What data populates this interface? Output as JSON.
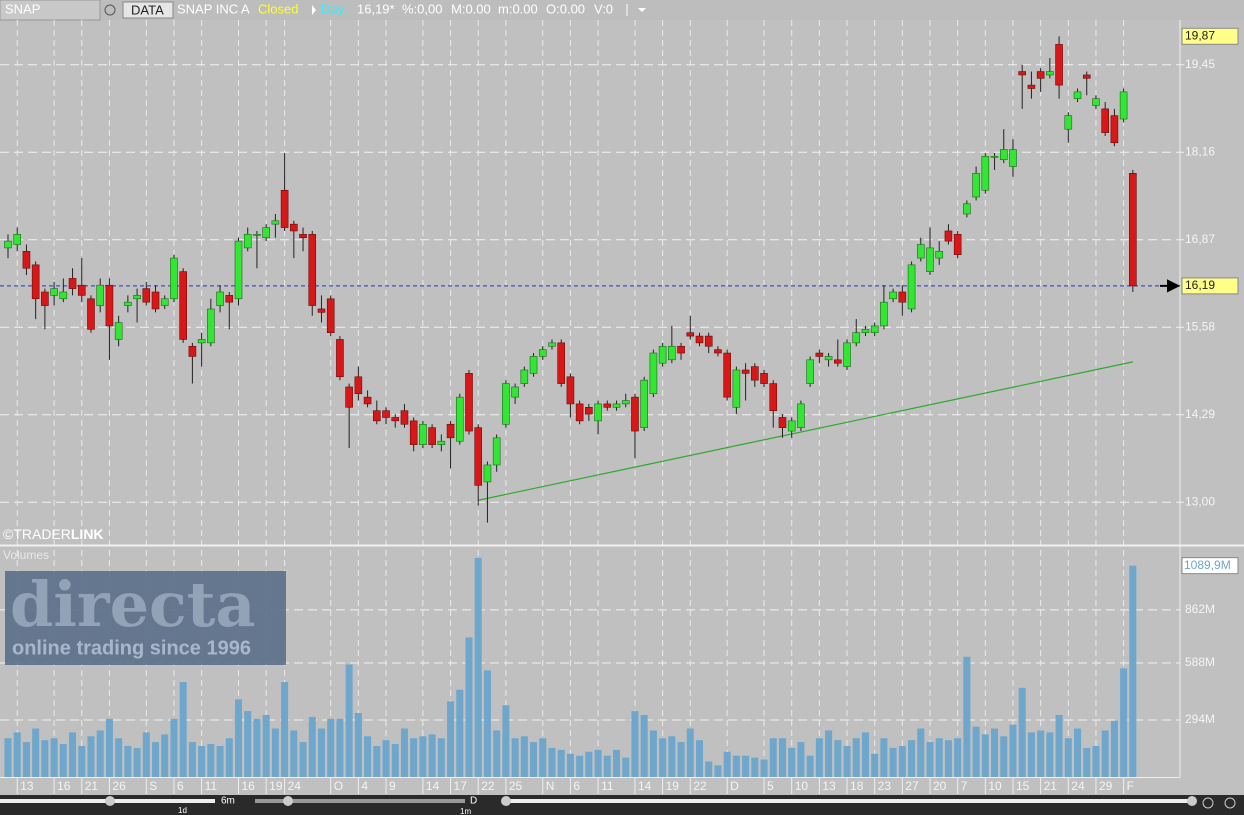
{
  "header": {
    "symbol": "SNAP",
    "source": "DATA",
    "name": "SNAP INC A",
    "status": "Closed",
    "period": "Day:",
    "last": "16,19*",
    "pct": "%:0,00",
    "max": "M:0.00",
    "min": "m:0.00",
    "open": "O:0.00",
    "volume": "V:0"
  },
  "brand": {
    "logo_left": "©TRADER",
    "logo_right": "LINK",
    "watermark": "directa",
    "tagline": "online trading since 1996"
  },
  "footer": {
    "range": "6m",
    "interval": "1d",
    "mode": "D",
    "zoom": "1m"
  },
  "chart_data": [
    {
      "type": "candlestick",
      "up_color": "#33e633",
      "down_color": "#d81818",
      "grid": true,
      "categories": [
        null,
        "13",
        null,
        null,
        null,
        "16",
        null,
        null,
        "21",
        null,
        null,
        "26",
        null,
        null,
        null,
        "S",
        null,
        null,
        "6",
        null,
        null,
        "11",
        null,
        null,
        null,
        "16",
        null,
        null,
        "19",
        null,
        "24",
        null,
        null,
        null,
        null,
        "O",
        null,
        null,
        "4",
        null,
        null,
        "9",
        null,
        null,
        null,
        "14",
        null,
        null,
        "17",
        null,
        null,
        "22",
        null,
        null,
        "25",
        null,
        null,
        null,
        "N",
        null,
        null,
        "6",
        null,
        null,
        "11",
        null,
        null,
        null,
        "14",
        null,
        null,
        "19",
        null,
        null,
        "22",
        null,
        null,
        null,
        "D",
        null,
        null,
        null,
        "5",
        null,
        null,
        "10",
        null,
        null,
        "13",
        null,
        null,
        "18",
        null,
        null,
        "23",
        null,
        null,
        "27",
        null,
        null,
        "20",
        null,
        null,
        "7",
        null,
        null,
        "10",
        null,
        null,
        "15",
        null,
        null,
        "21",
        null,
        null,
        "24",
        null,
        null,
        "29",
        null,
        null,
        "F",
        null
      ],
      "open": [
        16.75,
        16.8,
        16.7,
        16.5,
        16.1,
        16.05,
        16.0,
        16.3,
        16.2,
        16.0,
        15.9,
        16.2,
        15.4,
        15.9,
        16.0,
        16.15,
        16.1,
        15.9,
        16.0,
        16.4,
        15.3,
        15.35,
        15.35,
        15.9,
        16.05,
        16.0,
        16.75,
        16.95,
        16.9,
        17.1,
        17.6,
        17.1,
        16.95,
        16.95,
        15.85,
        16.0,
        15.4,
        14.7,
        14.85,
        14.55,
        14.35,
        14.35,
        14.25,
        14.35,
        14.2,
        13.85,
        14.1,
        13.85,
        14.15,
        13.9,
        14.9,
        14.1,
        13.3,
        13.55,
        14.15,
        14.55,
        14.75,
        14.9,
        15.15,
        15.3,
        15.35,
        14.85,
        14.45,
        14.4,
        14.2,
        14.45,
        14.4,
        14.45,
        14.55,
        14.1,
        14.6,
        15.05,
        15.1,
        15.3,
        15.5,
        15.45,
        15.45,
        15.25,
        15.2,
        14.4,
        14.95,
        15.0,
        14.9,
        14.75,
        14.25,
        14.05,
        14.1,
        14.75,
        15.2,
        15.1,
        15.1,
        15.0,
        15.35,
        15.5,
        15.5,
        15.6,
        16.0,
        16.1,
        15.85,
        16.6,
        16.4,
        16.6,
        17.0,
        16.95,
        17.25,
        17.5,
        17.6,
        18.1,
        18.05,
        17.95,
        19.35,
        19.15,
        19.35,
        19.3,
        19.75,
        18.5,
        18.95,
        19.3,
        18.85,
        18.8,
        18.7,
        18.65,
        17.85
      ],
      "high": [
        16.95,
        17.05,
        16.8,
        16.55,
        16.15,
        16.25,
        16.3,
        16.45,
        16.6,
        16.05,
        16.3,
        16.3,
        15.75,
        16.05,
        16.15,
        16.25,
        16.2,
        16.05,
        16.65,
        16.45,
        15.35,
        15.5,
        16.0,
        16.2,
        16.1,
        16.9,
        17.05,
        17.0,
        17.1,
        17.25,
        18.15,
        17.15,
        17.05,
        17.0,
        16.05,
        16.05,
        15.45,
        14.75,
        15.0,
        14.65,
        14.5,
        14.4,
        14.3,
        14.45,
        14.25,
        14.2,
        14.15,
        14.0,
        14.2,
        14.6,
        14.95,
        14.15,
        13.6,
        14.0,
        14.8,
        14.75,
        15.0,
        15.2,
        15.3,
        15.4,
        15.4,
        14.9,
        14.5,
        14.45,
        14.5,
        14.5,
        14.5,
        14.6,
        14.6,
        14.85,
        15.25,
        15.35,
        15.6,
        15.35,
        15.75,
        15.5,
        15.5,
        15.3,
        15.25,
        15.0,
        15.05,
        15.05,
        14.95,
        14.8,
        14.3,
        14.25,
        14.5,
        15.15,
        15.25,
        15.2,
        15.4,
        15.4,
        15.7,
        15.6,
        15.65,
        16.2,
        16.15,
        16.2,
        16.55,
        16.9,
        17.05,
        16.85,
        17.1,
        17.0,
        17.45,
        17.95,
        18.15,
        18.15,
        18.5,
        18.35,
        19.45,
        19.35,
        19.4,
        19.55,
        19.87,
        18.75,
        19.1,
        19.35,
        19.0,
        18.9,
        18.8,
        19.1,
        17.9
      ],
      "low": [
        16.6,
        16.7,
        16.35,
        15.7,
        15.55,
        15.9,
        15.95,
        16.05,
        15.95,
        15.5,
        15.8,
        15.1,
        15.3,
        15.8,
        15.65,
        15.9,
        15.8,
        15.85,
        15.95,
        15.35,
        14.75,
        15.0,
        15.3,
        15.8,
        15.55,
        15.9,
        16.7,
        16.45,
        16.85,
        16.9,
        17.0,
        16.6,
        16.7,
        15.75,
        15.65,
        15.45,
        14.8,
        13.8,
        14.5,
        14.4,
        14.15,
        14.15,
        14.1,
        14.1,
        13.75,
        13.8,
        13.8,
        13.75,
        13.5,
        13.85,
        14.0,
        12.95,
        12.7,
        13.45,
        14.1,
        14.45,
        14.7,
        14.85,
        15.1,
        15.25,
        14.7,
        14.25,
        14.15,
        14.2,
        14.0,
        14.35,
        14.35,
        14.4,
        13.65,
        14.05,
        14.55,
        15.0,
        15.05,
        15.1,
        15.4,
        15.3,
        15.2,
        15.15,
        14.5,
        14.3,
        14.5,
        14.7,
        14.7,
        14.1,
        13.95,
        13.95,
        14.05,
        14.7,
        15.05,
        15.0,
        15.0,
        14.95,
        15.3,
        15.45,
        15.45,
        15.55,
        15.95,
        15.75,
        15.8,
        16.55,
        16.35,
        16.5,
        16.8,
        16.6,
        17.2,
        17.45,
        17.55,
        17.9,
        18.0,
        17.8,
        18.8,
        18.95,
        19.05,
        19.25,
        18.95,
        18.3,
        18.9,
        19.0,
        18.8,
        18.4,
        18.25,
        18.6,
        16.1
      ],
      "close": [
        16.85,
        16.95,
        16.45,
        16.0,
        15.9,
        16.15,
        16.1,
        16.15,
        16.05,
        15.55,
        16.2,
        15.6,
        15.65,
        15.95,
        16.05,
        15.95,
        15.85,
        16.0,
        16.6,
        15.4,
        15.15,
        15.4,
        15.85,
        16.1,
        15.95,
        16.85,
        16.95,
        16.95,
        17.05,
        17.15,
        17.05,
        17.0,
        16.9,
        15.9,
        15.8,
        15.5,
        14.85,
        14.4,
        14.6,
        14.45,
        14.2,
        14.25,
        14.2,
        14.15,
        13.85,
        14.15,
        13.85,
        13.9,
        13.95,
        14.55,
        14.05,
        13.25,
        13.55,
        13.95,
        14.75,
        14.7,
        14.95,
        15.15,
        15.25,
        15.35,
        14.75,
        14.45,
        14.2,
        14.3,
        14.45,
        14.4,
        14.45,
        14.5,
        14.05,
        14.8,
        15.2,
        15.3,
        15.3,
        15.2,
        15.45,
        15.35,
        15.3,
        15.2,
        14.55,
        14.95,
        14.9,
        14.8,
        14.75,
        14.35,
        14.1,
        14.2,
        14.45,
        15.1,
        15.15,
        15.15,
        15.05,
        15.35,
        15.5,
        15.55,
        15.6,
        15.95,
        16.1,
        15.95,
        16.5,
        16.8,
        16.75,
        16.7,
        16.85,
        16.65,
        17.4,
        17.85,
        18.1,
        18.1,
        18.2,
        18.2,
        19.3,
        19.1,
        19.25,
        19.35,
        19.15,
        18.7,
        19.05,
        19.25,
        18.95,
        18.45,
        18.3,
        19.05,
        16.19
      ],
      "ylim": [
        12.37,
        20.11
      ],
      "yticks": [
        {
          "value": 19.45,
          "label": "19,45"
        },
        {
          "value": 18.16,
          "label": "18,16"
        },
        {
          "value": 16.87,
          "label": "16,87"
        },
        {
          "value": 15.58,
          "label": "15,58"
        },
        {
          "value": 14.29,
          "label": "14,29"
        },
        {
          "value": 13.0,
          "label": "13,00"
        }
      ],
      "current": {
        "value": 16.19,
        "label": "16,19"
      },
      "range_high": {
        "value": 19.87,
        "label": "19,87"
      },
      "trendline": {
        "x": [
          51,
          122
        ],
        "values": [
          13.03,
          15.07
        ],
        "color": "#2ea82e"
      }
    },
    {
      "type": "bar",
      "title": "Volumes",
      "color": "#6ea6cc",
      "values": [
        200,
        230,
        180,
        250,
        190,
        200,
        170,
        230,
        160,
        210,
        240,
        300,
        200,
        160,
        150,
        230,
        180,
        220,
        300,
        490,
        180,
        160,
        170,
        160,
        200,
        400,
        340,
        300,
        320,
        250,
        490,
        240,
        180,
        310,
        250,
        300,
        300,
        580,
        330,
        210,
        160,
        190,
        170,
        250,
        200,
        210,
        220,
        200,
        390,
        450,
        720,
        1130,
        550,
        240,
        370,
        200,
        210,
        180,
        200,
        150,
        140,
        120,
        110,
        130,
        140,
        110,
        140,
        100,
        340,
        320,
        240,
        200,
        210,
        180,
        250,
        190,
        80,
        60,
        130,
        110,
        110,
        100,
        90,
        200,
        200,
        150,
        180,
        110,
        200,
        240,
        190,
        160,
        200,
        230,
        120,
        200,
        150,
        160,
        190,
        250,
        180,
        200,
        190,
        200,
        620,
        260,
        220,
        250,
        210,
        270,
        460,
        230,
        240,
        230,
        320,
        200,
        250,
        150,
        160,
        240,
        290,
        560,
        1089.9
      ],
      "ylim": [
        0,
        1181
      ],
      "yticks": [
        {
          "value": 294,
          "label": "294M"
        },
        {
          "value": 588,
          "label": "588M"
        },
        {
          "value": 862,
          "label": "862M"
        }
      ],
      "current": {
        "value": 1089.9,
        "label": "1089,9M"
      }
    }
  ]
}
